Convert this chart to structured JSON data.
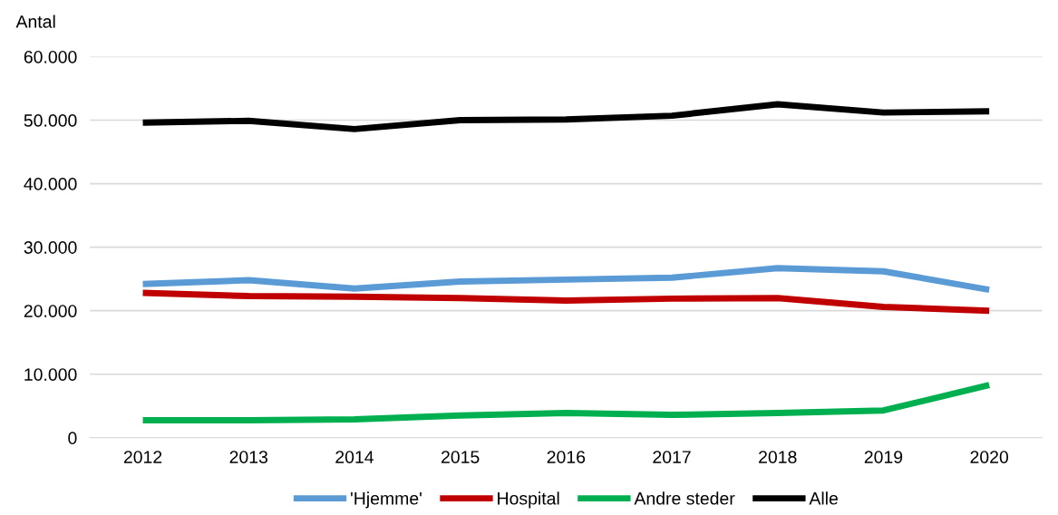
{
  "chart_data": {
    "type": "line",
    "ylabel": "Antal",
    "categories": [
      "2012",
      "2013",
      "2014",
      "2015",
      "2016",
      "2017",
      "2018",
      "2019",
      "2020"
    ],
    "series": [
      {
        "name": "'Hjemme'",
        "color": "#5b9bd5",
        "values": [
          24200,
          24800,
          23500,
          24600,
          24900,
          25200,
          26700,
          26200,
          23300
        ]
      },
      {
        "name": "Hospital",
        "color": "#c00000",
        "values": [
          22800,
          22300,
          22200,
          22000,
          21600,
          21900,
          22000,
          20600,
          20000
        ]
      },
      {
        "name": "Andre steder",
        "color": "#00b050",
        "values": [
          2750,
          2750,
          2900,
          3500,
          3900,
          3600,
          3900,
          4300,
          8300
        ]
      },
      {
        "name": "Alle",
        "color": "#000000",
        "values": [
          49600,
          49900,
          48600,
          50000,
          50100,
          50700,
          52500,
          51200,
          51400
        ]
      }
    ],
    "ylim": [
      0,
      60000
    ],
    "yticks": [
      {
        "value": 0,
        "label": "0"
      },
      {
        "value": 10000,
        "label": "10.000"
      },
      {
        "value": 20000,
        "label": "20.000"
      },
      {
        "value": 30000,
        "label": "30.000"
      },
      {
        "value": 40000,
        "label": "40.000"
      },
      {
        "value": 50000,
        "label": "50.000"
      },
      {
        "value": 60000,
        "label": "60.000"
      }
    ],
    "grid": "y",
    "legend": "bottom",
    "marker": "none",
    "line_style": "solid"
  }
}
